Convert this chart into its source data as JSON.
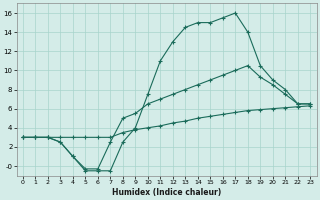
{
  "xlabel": "Humidex (Indice chaleur)",
  "background_color": "#d4ece8",
  "grid_color": "#a8d4cc",
  "line_color": "#1a6b5a",
  "xlim": [
    -0.5,
    23.5
  ],
  "ylim": [
    -1.0,
    17.0
  ],
  "xticks": [
    0,
    1,
    2,
    3,
    4,
    5,
    6,
    7,
    8,
    9,
    10,
    11,
    12,
    13,
    14,
    15,
    16,
    17,
    18,
    19,
    20,
    21,
    22,
    23
  ],
  "yticks": [
    0,
    2,
    4,
    6,
    8,
    10,
    12,
    14,
    16
  ],
  "line1_x": [
    0,
    1,
    2,
    3,
    4,
    5,
    6,
    7,
    8,
    9,
    10,
    11,
    12,
    13,
    14,
    15,
    16,
    17,
    18,
    19,
    20,
    21,
    22,
    23
  ],
  "line1_y": [
    3.0,
    3.0,
    3.0,
    3.0,
    3.0,
    3.0,
    3.0,
    3.0,
    3.5,
    3.8,
    4.0,
    4.2,
    4.5,
    4.7,
    5.0,
    5.2,
    5.4,
    5.6,
    5.8,
    5.9,
    6.0,
    6.1,
    6.2,
    6.3
  ],
  "line2_x": [
    0,
    1,
    2,
    3,
    4,
    5,
    6,
    7,
    8,
    9,
    10,
    11,
    12,
    13,
    14,
    15,
    16,
    17,
    18,
    19,
    20,
    21,
    22,
    23
  ],
  "line2_y": [
    3.0,
    3.0,
    3.0,
    2.5,
    1.0,
    -0.5,
    -0.5,
    -0.5,
    2.5,
    4.0,
    7.5,
    11.0,
    13.0,
    14.5,
    15.0,
    15.0,
    15.5,
    16.0,
    14.0,
    10.5,
    9.0,
    8.0,
    6.5,
    6.5
  ],
  "line3_x": [
    0,
    1,
    2,
    3,
    4,
    5,
    6,
    7,
    8,
    9,
    10,
    11,
    12,
    13,
    14,
    15,
    16,
    17,
    18,
    19,
    20,
    21,
    22,
    23
  ],
  "line3_y": [
    3.0,
    3.0,
    3.0,
    2.5,
    1.0,
    -0.3,
    -0.3,
    2.5,
    5.0,
    5.5,
    6.5,
    7.0,
    7.5,
    8.0,
    8.5,
    9.0,
    9.5,
    10.0,
    10.5,
    9.3,
    8.5,
    7.5,
    6.5,
    6.5
  ]
}
